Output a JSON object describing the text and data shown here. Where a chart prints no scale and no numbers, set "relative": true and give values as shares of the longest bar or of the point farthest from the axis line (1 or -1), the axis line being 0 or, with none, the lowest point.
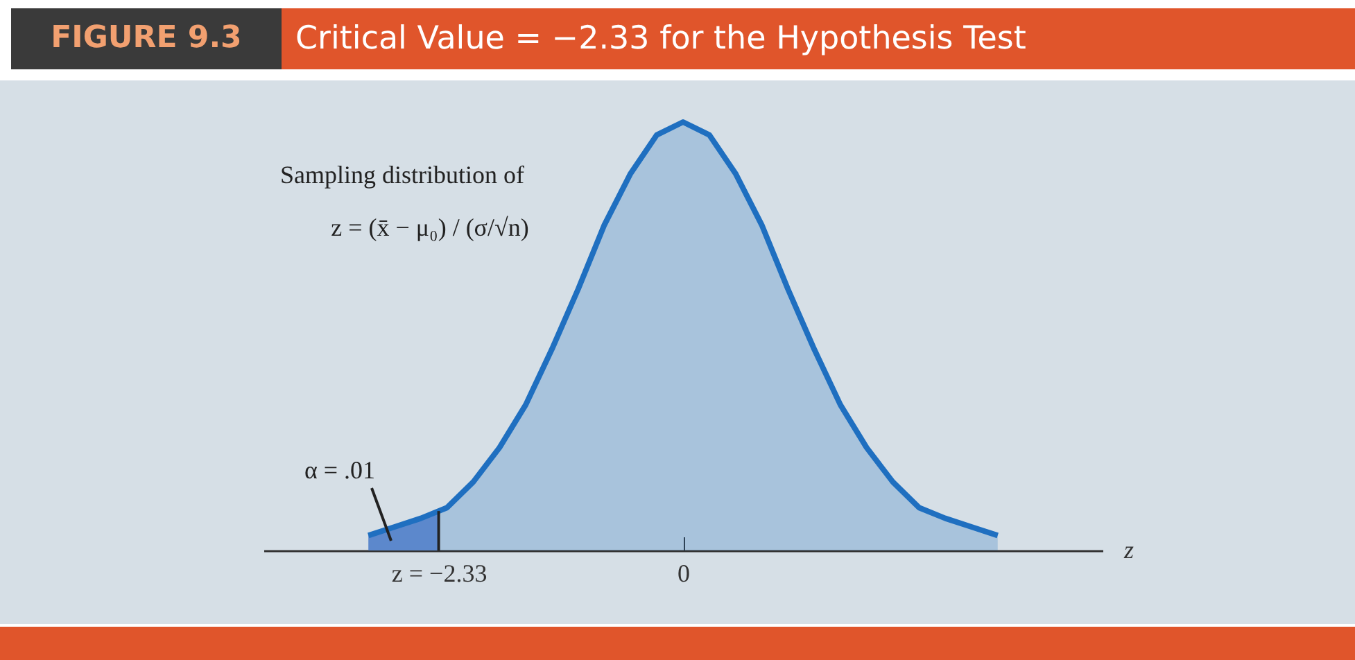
{
  "chart_data": {
    "type": "area",
    "title": "Critical Value = −2.33 for the Hypothesis Test",
    "xlabel": "z",
    "relative": true,
    "annotations": [
      "FIGURE 9.3",
      "Sampling distribution of",
      "z = (x̄ − μ₀) / (σ/√n)",
      "α = .01"
    ],
    "x": [
      -3,
      -2.75,
      -2.5,
      -2.25,
      -2,
      -1.75,
      -1.5,
      -1.25,
      -1,
      -0.75,
      -0.5,
      -0.25,
      0,
      0.25,
      0.5,
      0.75,
      1,
      1.25,
      1.5,
      1.75,
      2,
      2.25,
      2.5,
      2.75,
      3
    ],
    "series": [
      {
        "color": "#1f6fc0",
        "values": [
          0.035,
          0.055,
          0.075,
          0.1,
          0.16,
          0.24,
          0.34,
          0.47,
          0.61,
          0.76,
          0.88,
          0.97,
          1,
          0.97,
          0.88,
          0.76,
          0.61,
          0.47,
          0.34,
          0.24,
          0.16,
          0.1,
          0.075,
          0.055,
          0.035
        ]
      },
      {
        "color": "#7190d0",
        "x": [
          -3,
          -2.75,
          -2.5,
          -2.33
        ],
        "values": [
          0.035,
          0.055,
          0.075,
          0.087
        ]
      }
    ],
    "xlim": [
      -4,
      4
    ],
    "xticks": [
      {
        "value": -2.33,
        "label": "z = −2.33"
      },
      0
    ],
    "ref_lines": [
      {
        "axis": "x",
        "value": -2.33,
        "color": "#222222"
      }
    ],
    "grid": false
  }
}
